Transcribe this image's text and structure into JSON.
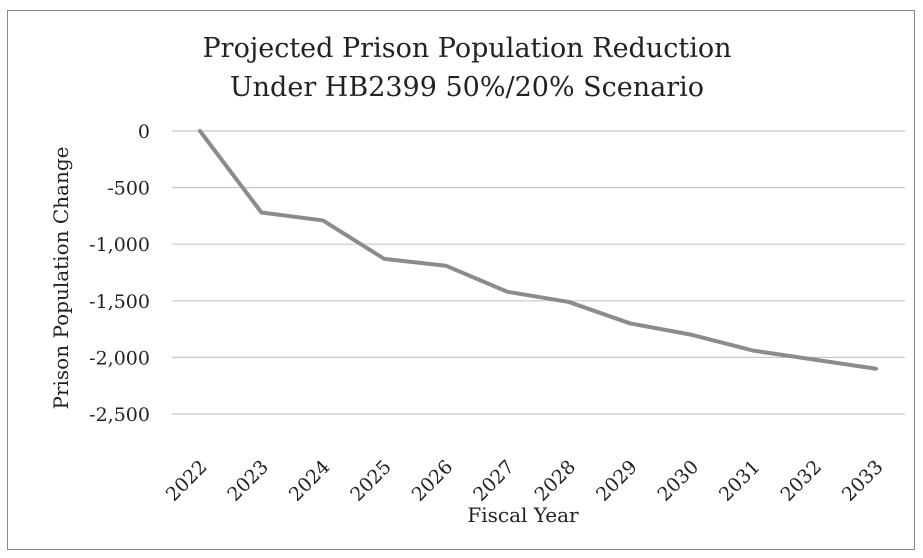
{
  "chart_data": {
    "type": "line",
    "title_lines": [
      "Projected Prison Population Reduction",
      "Under HB2399 50%/20% Scenario"
    ],
    "xlabel": "Fiscal Year",
    "ylabel": "Prison Population Change",
    "categories": [
      "2022",
      "2023",
      "2024",
      "2025",
      "2026",
      "2027",
      "2028",
      "2029",
      "2030",
      "2031",
      "2032",
      "2033"
    ],
    "series": [
      {
        "values": [
          0,
          -720,
          -790,
          -1130,
          -1190,
          -1420,
          -1510,
          -1700,
          -1800,
          -1940,
          -2020,
          -2100
        ]
      }
    ],
    "yticks": [
      0,
      -500,
      -1000,
      -1500,
      -2000,
      -2500
    ],
    "ytick_labels": [
      "0",
      "-500",
      "-1,000",
      "-1,500",
      "-2,000",
      "-2,500"
    ],
    "ylim": [
      -2500,
      0
    ],
    "grid": true,
    "legend": "none",
    "line_color": "#8c8c8c"
  }
}
